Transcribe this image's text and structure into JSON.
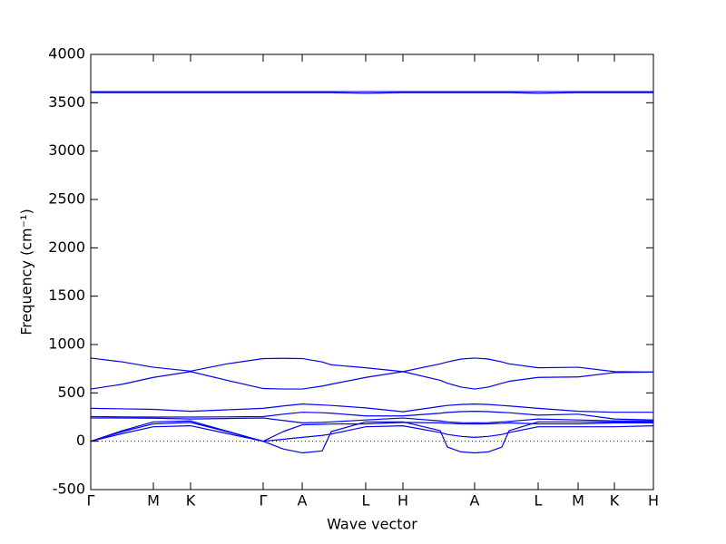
{
  "chart_data": {
    "type": "line",
    "xlabel": "Wave vector",
    "ylabel": "Frequency (cm⁻¹)",
    "xlim": [
      0,
      620
    ],
    "ylim": [
      -500,
      4000
    ],
    "yticks": [
      -500,
      0,
      500,
      1000,
      1500,
      2000,
      2500,
      3000,
      3500,
      4000
    ],
    "xticks": [
      {
        "value": 0,
        "label": "Γ"
      },
      {
        "value": 69,
        "label": "M"
      },
      {
        "value": 110,
        "label": "K"
      },
      {
        "value": 190,
        "label": "Γ"
      },
      {
        "value": 233,
        "label": "A"
      },
      {
        "value": 303,
        "label": "L"
      },
      {
        "value": 344,
        "label": "H"
      },
      {
        "value": 423,
        "label": "A"
      },
      {
        "value": 493,
        "label": "L"
      },
      {
        "value": 537,
        "label": "M"
      },
      {
        "value": 577,
        "label": "K"
      },
      {
        "value": 620,
        "label": "H"
      }
    ],
    "hline": 0,
    "grid": false,
    "x": [
      0,
      35,
      69,
      110,
      150,
      190,
      212,
      233,
      255,
      265,
      303,
      344,
      385,
      393,
      408,
      423,
      438,
      453,
      461,
      493,
      537,
      577,
      620
    ],
    "series": [
      {
        "color": "#0000ff",
        "values": [
          3615,
          3615,
          3615,
          3615,
          3615,
          3615,
          3615,
          3615,
          3615,
          3615,
          3615,
          3615,
          3615,
          3615,
          3615,
          3615,
          3615,
          3615,
          3615,
          3615,
          3615,
          3615,
          3615
        ]
      },
      {
        "color": "#0000ff",
        "values": [
          3605,
          3605,
          3605,
          3605,
          3605,
          3605,
          3605,
          3605,
          3605,
          3605,
          3598,
          3605,
          3605,
          3605,
          3605,
          3605,
          3605,
          3605,
          3605,
          3598,
          3605,
          3605,
          3605
        ]
      },
      {
        "color": "#0000ff",
        "values": [
          860,
          820,
          765,
          725,
          800,
          855,
          857,
          855,
          820,
          790,
          760,
          720,
          800,
          820,
          850,
          860,
          850,
          820,
          800,
          760,
          765,
          720,
          715
        ]
      },
      {
        "color": "#0000ff",
        "values": [
          540,
          590,
          660,
          720,
          630,
          545,
          540,
          540,
          570,
          590,
          660,
          720,
          630,
          600,
          560,
          540,
          560,
          600,
          620,
          660,
          665,
          710,
          715
        ]
      },
      {
        "color": "#0000ff",
        "values": [
          340,
          335,
          330,
          310,
          325,
          340,
          365,
          385,
          375,
          370,
          345,
          305,
          360,
          370,
          380,
          385,
          380,
          370,
          365,
          340,
          310,
          300,
          300
        ]
      },
      {
        "color": "#0000ff",
        "values": [
          255,
          252,
          250,
          250,
          252,
          255,
          280,
          300,
          295,
          290,
          262,
          262,
          290,
          298,
          306,
          310,
          306,
          298,
          295,
          270,
          280,
          230,
          220
        ]
      },
      {
        "color": "#0000ff",
        "values": [
          240,
          240,
          238,
          230,
          235,
          240,
          215,
          190,
          195,
          200,
          220,
          240,
          210,
          200,
          192,
          190,
          192,
          200,
          205,
          230,
          220,
          210,
          210
        ]
      },
      {
        "color": "#0000ff",
        "values": [
          0,
          100,
          180,
          195,
          100,
          0,
          100,
          170,
          175,
          178,
          180,
          195,
          190,
          185,
          180,
          178,
          180,
          185,
          190,
          180,
          180,
          190,
          190
        ]
      },
      {
        "color": "#0000ff",
        "values": [
          0,
          80,
          150,
          160,
          80,
          0,
          20,
          40,
          60,
          75,
          150,
          160,
          90,
          70,
          50,
          40,
          50,
          70,
          90,
          150,
          150,
          150,
          160
        ]
      },
      {
        "color": "#0000ff",
        "values": [
          0,
          110,
          200,
          210,
          105,
          0,
          -80,
          -120,
          -100,
          100,
          200,
          200,
          110,
          -60,
          -110,
          -120,
          -110,
          -60,
          110,
          200,
          200,
          200,
          200
        ]
      }
    ]
  }
}
